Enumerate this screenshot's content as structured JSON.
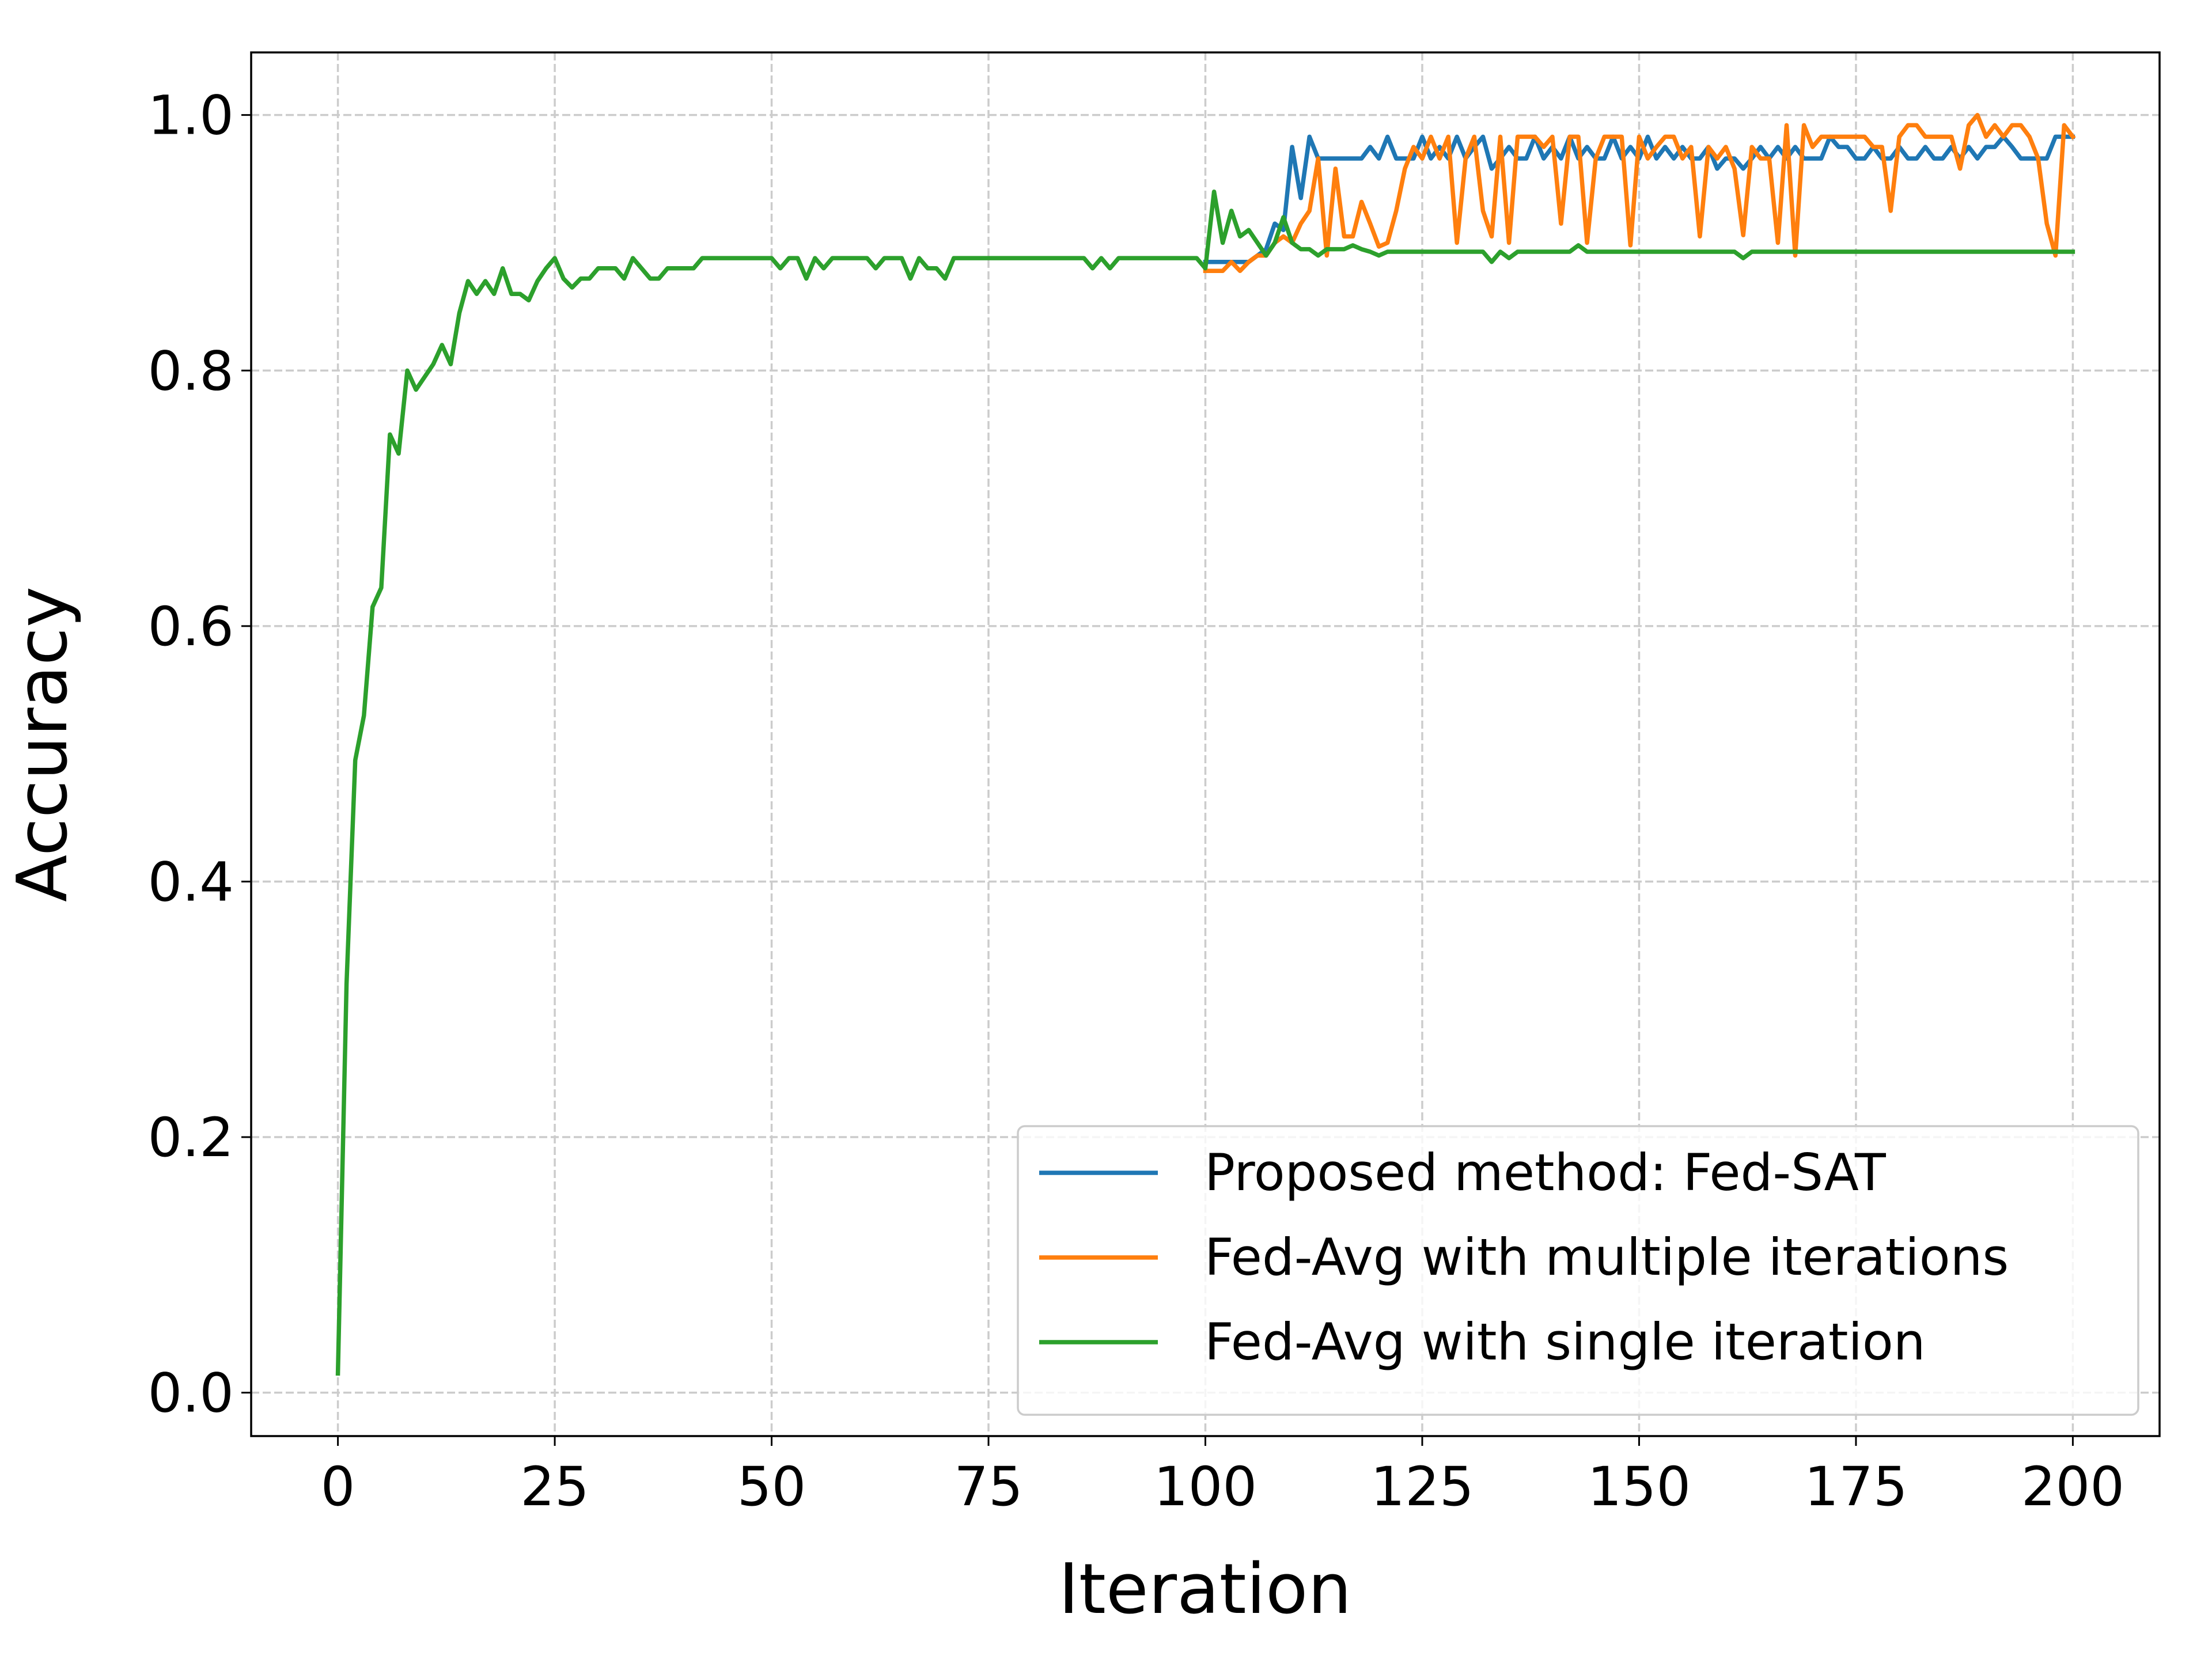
{
  "chart_data": {
    "type": "line",
    "x_label": "Iteration",
    "y_label": "Accuracy",
    "x": [
      0,
      1,
      2,
      3,
      4,
      5,
      6,
      7,
      8,
      9,
      10,
      11,
      12,
      13,
      14,
      15,
      16,
      17,
      18,
      19,
      20,
      21,
      22,
      23,
      24,
      25,
      26,
      27,
      28,
      29,
      30,
      31,
      32,
      33,
      34,
      35,
      36,
      37,
      38,
      39,
      40,
      41,
      42,
      43,
      44,
      45,
      46,
      47,
      48,
      49,
      50,
      51,
      52,
      53,
      54,
      55,
      56,
      57,
      58,
      59,
      60,
      61,
      62,
      63,
      64,
      65,
      66,
      67,
      68,
      69,
      70,
      71,
      72,
      73,
      74,
      75,
      76,
      77,
      78,
      79,
      80,
      81,
      82,
      83,
      84,
      85,
      86,
      87,
      88,
      89,
      90,
      91,
      92,
      93,
      94,
      95,
      96,
      97,
      98,
      99,
      100,
      101,
      102,
      103,
      104,
      105,
      106,
      107,
      108,
      109,
      110,
      111,
      112,
      113,
      114,
      115,
      116,
      117,
      118,
      119,
      120,
      121,
      122,
      123,
      124,
      125,
      126,
      127,
      128,
      129,
      130,
      131,
      132,
      133,
      134,
      135,
      136,
      137,
      138,
      139,
      140,
      141,
      142,
      143,
      144,
      145,
      146,
      147,
      148,
      149,
      150,
      151,
      152,
      153,
      154,
      155,
      156,
      157,
      158,
      159,
      160,
      161,
      162,
      163,
      164,
      165,
      166,
      167,
      168,
      169,
      170,
      171,
      172,
      173,
      174,
      175,
      176,
      177,
      178,
      179,
      180,
      181,
      182,
      183,
      184,
      185,
      186,
      187,
      188,
      189,
      190,
      191,
      192,
      193,
      194,
      195,
      196,
      197,
      198,
      199,
      200
    ],
    "series": [
      {
        "name": "Proposed method: Fed-SAT",
        "color": "#1f77b4",
        "values": [
          null,
          null,
          null,
          null,
          null,
          null,
          null,
          null,
          null,
          null,
          null,
          null,
          null,
          null,
          null,
          null,
          null,
          null,
          null,
          null,
          null,
          null,
          null,
          null,
          null,
          null,
          null,
          null,
          null,
          null,
          null,
          null,
          null,
          null,
          null,
          null,
          null,
          null,
          null,
          null,
          null,
          null,
          null,
          null,
          null,
          null,
          null,
          null,
          null,
          null,
          null,
          null,
          null,
          null,
          null,
          null,
          null,
          null,
          null,
          null,
          null,
          null,
          null,
          null,
          null,
          null,
          null,
          null,
          null,
          null,
          null,
          null,
          null,
          null,
          null,
          null,
          null,
          null,
          null,
          null,
          null,
          null,
          null,
          null,
          null,
          null,
          null,
          null,
          null,
          null,
          null,
          null,
          null,
          null,
          null,
          null,
          null,
          null,
          null,
          null,
          0.885,
          0.885,
          0.885,
          0.885,
          0.885,
          0.885,
          0.89,
          0.895,
          0.915,
          0.91,
          0.975,
          0.935,
          0.983,
          0.966,
          0.966,
          0.966,
          0.966,
          0.966,
          0.966,
          0.975,
          0.966,
          0.983,
          0.966,
          0.966,
          0.966,
          0.983,
          0.966,
          0.975,
          0.966,
          0.983,
          0.966,
          0.975,
          0.983,
          0.958,
          0.966,
          0.975,
          0.966,
          0.966,
          0.983,
          0.966,
          0.975,
          0.966,
          0.983,
          0.966,
          0.975,
          0.966,
          0.966,
          0.983,
          0.966,
          0.975,
          0.966,
          0.983,
          0.966,
          0.975,
          0.966,
          0.975,
          0.966,
          0.966,
          0.975,
          0.958,
          0.966,
          0.966,
          0.958,
          0.966,
          0.975,
          0.966,
          0.975,
          0.966,
          0.975,
          0.966,
          0.966,
          0.966,
          0.983,
          0.975,
          0.975,
          0.966,
          0.966,
          0.975,
          0.966,
          0.966,
          0.975,
          0.966,
          0.966,
          0.975,
          0.966,
          0.966,
          0.975,
          0.966,
          0.975,
          0.966,
          0.975,
          0.975,
          0.983,
          0.975,
          0.966,
          0.966,
          0.966,
          0.966,
          0.983,
          0.983,
          0.983
        ]
      },
      {
        "name": "Fed-Avg with multiple iterations",
        "color": "#ff7f0e",
        "values": [
          null,
          null,
          null,
          null,
          null,
          null,
          null,
          null,
          null,
          null,
          null,
          null,
          null,
          null,
          null,
          null,
          null,
          null,
          null,
          null,
          null,
          null,
          null,
          null,
          null,
          null,
          null,
          null,
          null,
          null,
          null,
          null,
          null,
          null,
          null,
          null,
          null,
          null,
          null,
          null,
          null,
          null,
          null,
          null,
          null,
          null,
          null,
          null,
          null,
          null,
          null,
          null,
          null,
          null,
          null,
          null,
          null,
          null,
          null,
          null,
          null,
          null,
          null,
          null,
          null,
          null,
          null,
          null,
          null,
          null,
          null,
          null,
          null,
          null,
          null,
          null,
          null,
          null,
          null,
          null,
          null,
          null,
          null,
          null,
          null,
          null,
          null,
          null,
          null,
          null,
          null,
          null,
          null,
          null,
          null,
          null,
          null,
          null,
          null,
          null,
          0.878,
          0.878,
          0.878,
          0.885,
          0.878,
          0.885,
          0.89,
          0.89,
          0.9,
          0.905,
          0.9,
          0.915,
          0.925,
          0.966,
          0.89,
          0.958,
          0.905,
          0.905,
          0.932,
          0.915,
          0.897,
          0.9,
          0.925,
          0.958,
          0.975,
          0.966,
          0.983,
          0.966,
          0.983,
          0.9,
          0.966,
          0.983,
          0.925,
          0.905,
          0.983,
          0.9,
          0.983,
          0.983,
          0.983,
          0.975,
          0.983,
          0.915,
          0.983,
          0.983,
          0.9,
          0.966,
          0.983,
          0.983,
          0.983,
          0.898,
          0.983,
          0.966,
          0.975,
          0.983,
          0.983,
          0.966,
          0.975,
          0.905,
          0.975,
          0.966,
          0.975,
          0.958,
          0.906,
          0.975,
          0.966,
          0.966,
          0.9,
          0.992,
          0.89,
          0.992,
          0.975,
          0.983,
          0.983,
          0.983,
          0.983,
          0.983,
          0.983,
          0.975,
          0.975,
          0.925,
          0.983,
          0.992,
          0.992,
          0.983,
          0.983,
          0.983,
          0.983,
          0.958,
          0.992,
          1.0,
          0.983,
          0.992,
          0.983,
          0.992,
          0.992,
          0.983,
          0.966,
          0.915,
          0.89,
          0.992,
          0.983
        ]
      },
      {
        "name": "Fed-Avg with single iteration",
        "color": "#2ca02c",
        "values": [
          0.015,
          0.32,
          0.495,
          0.53,
          0.615,
          0.63,
          0.75,
          0.735,
          0.8,
          0.785,
          0.795,
          0.805,
          0.82,
          0.805,
          0.845,
          0.87,
          0.86,
          0.87,
          0.86,
          0.88,
          0.86,
          0.86,
          0.855,
          0.87,
          0.88,
          0.888,
          0.872,
          0.865,
          0.872,
          0.872,
          0.88,
          0.88,
          0.88,
          0.872,
          0.888,
          0.88,
          0.872,
          0.872,
          0.88,
          0.88,
          0.88,
          0.88,
          0.888,
          0.888,
          0.888,
          0.888,
          0.888,
          0.888,
          0.888,
          0.888,
          0.888,
          0.88,
          0.888,
          0.888,
          0.872,
          0.888,
          0.88,
          0.888,
          0.888,
          0.888,
          0.888,
          0.888,
          0.88,
          0.888,
          0.888,
          0.888,
          0.872,
          0.888,
          0.88,
          0.88,
          0.872,
          0.888,
          0.888,
          0.888,
          0.888,
          0.888,
          0.888,
          0.888,
          0.888,
          0.888,
          0.888,
          0.888,
          0.888,
          0.888,
          0.888,
          0.888,
          0.888,
          0.88,
          0.888,
          0.88,
          0.888,
          0.888,
          0.888,
          0.888,
          0.888,
          0.888,
          0.888,
          0.888,
          0.888,
          0.888,
          0.88,
          0.94,
          0.9,
          0.925,
          0.905,
          0.91,
          0.9,
          0.89,
          0.9,
          0.92,
          0.9,
          0.895,
          0.895,
          0.89,
          0.895,
          0.895,
          0.895,
          0.898,
          0.895,
          0.893,
          0.89,
          0.893,
          0.893,
          0.893,
          0.893,
          0.893,
          0.893,
          0.893,
          0.893,
          0.893,
          0.893,
          0.893,
          0.893,
          0.885,
          0.893,
          0.888,
          0.893,
          0.893,
          0.893,
          0.893,
          0.893,
          0.893,
          0.893,
          0.898,
          0.893,
          0.893,
          0.893,
          0.893,
          0.893,
          0.893,
          0.893,
          0.893,
          0.893,
          0.893,
          0.893,
          0.893,
          0.893,
          0.893,
          0.893,
          0.893,
          0.893,
          0.893,
          0.888,
          0.893,
          0.893,
          0.893,
          0.893,
          0.893,
          0.893,
          0.893,
          0.893,
          0.893,
          0.893,
          0.893,
          0.893,
          0.893,
          0.893,
          0.893,
          0.893,
          0.893,
          0.893,
          0.893,
          0.893,
          0.893,
          0.893,
          0.893,
          0.893,
          0.893,
          0.893,
          0.893,
          0.893,
          0.893,
          0.893,
          0.893,
          0.893,
          0.893,
          0.893,
          0.893,
          0.893,
          0.893,
          0.893
        ]
      }
    ],
    "xlim": [
      -10,
      210
    ],
    "xticks": [
      0,
      25,
      50,
      75,
      100,
      125,
      150,
      175,
      200
    ],
    "ylim": [
      -0.034,
      1.049
    ],
    "yticks": [
      {
        "value": 0,
        "label": "0.0"
      },
      0.2,
      0.4,
      0.6,
      0.8,
      {
        "value": 1,
        "label": "1.0"
      }
    ],
    "grid": true,
    "legend": "lower right"
  }
}
